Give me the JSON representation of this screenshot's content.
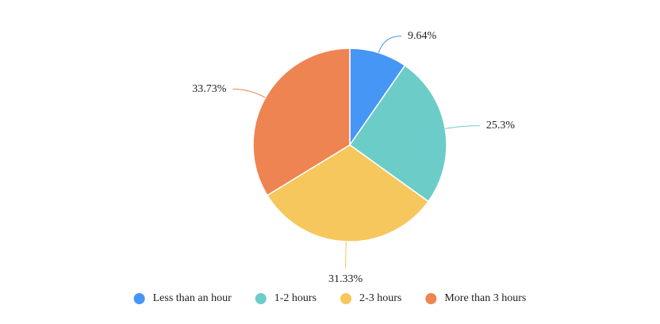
{
  "chart_data": {
    "type": "pie",
    "categories": [
      "Less than an hour",
      "1-2 hours",
      "2-3 hours",
      "More than 3 hours"
    ],
    "values": [
      9.64,
      25.3,
      31.33,
      33.73
    ],
    "value_labels": [
      "9.64%",
      "25.3%",
      "31.33%",
      "33.73%"
    ],
    "colors": [
      "#4596f5",
      "#6ccdc8",
      "#f6c75c",
      "#ee8452"
    ],
    "legend": "bottom"
  }
}
